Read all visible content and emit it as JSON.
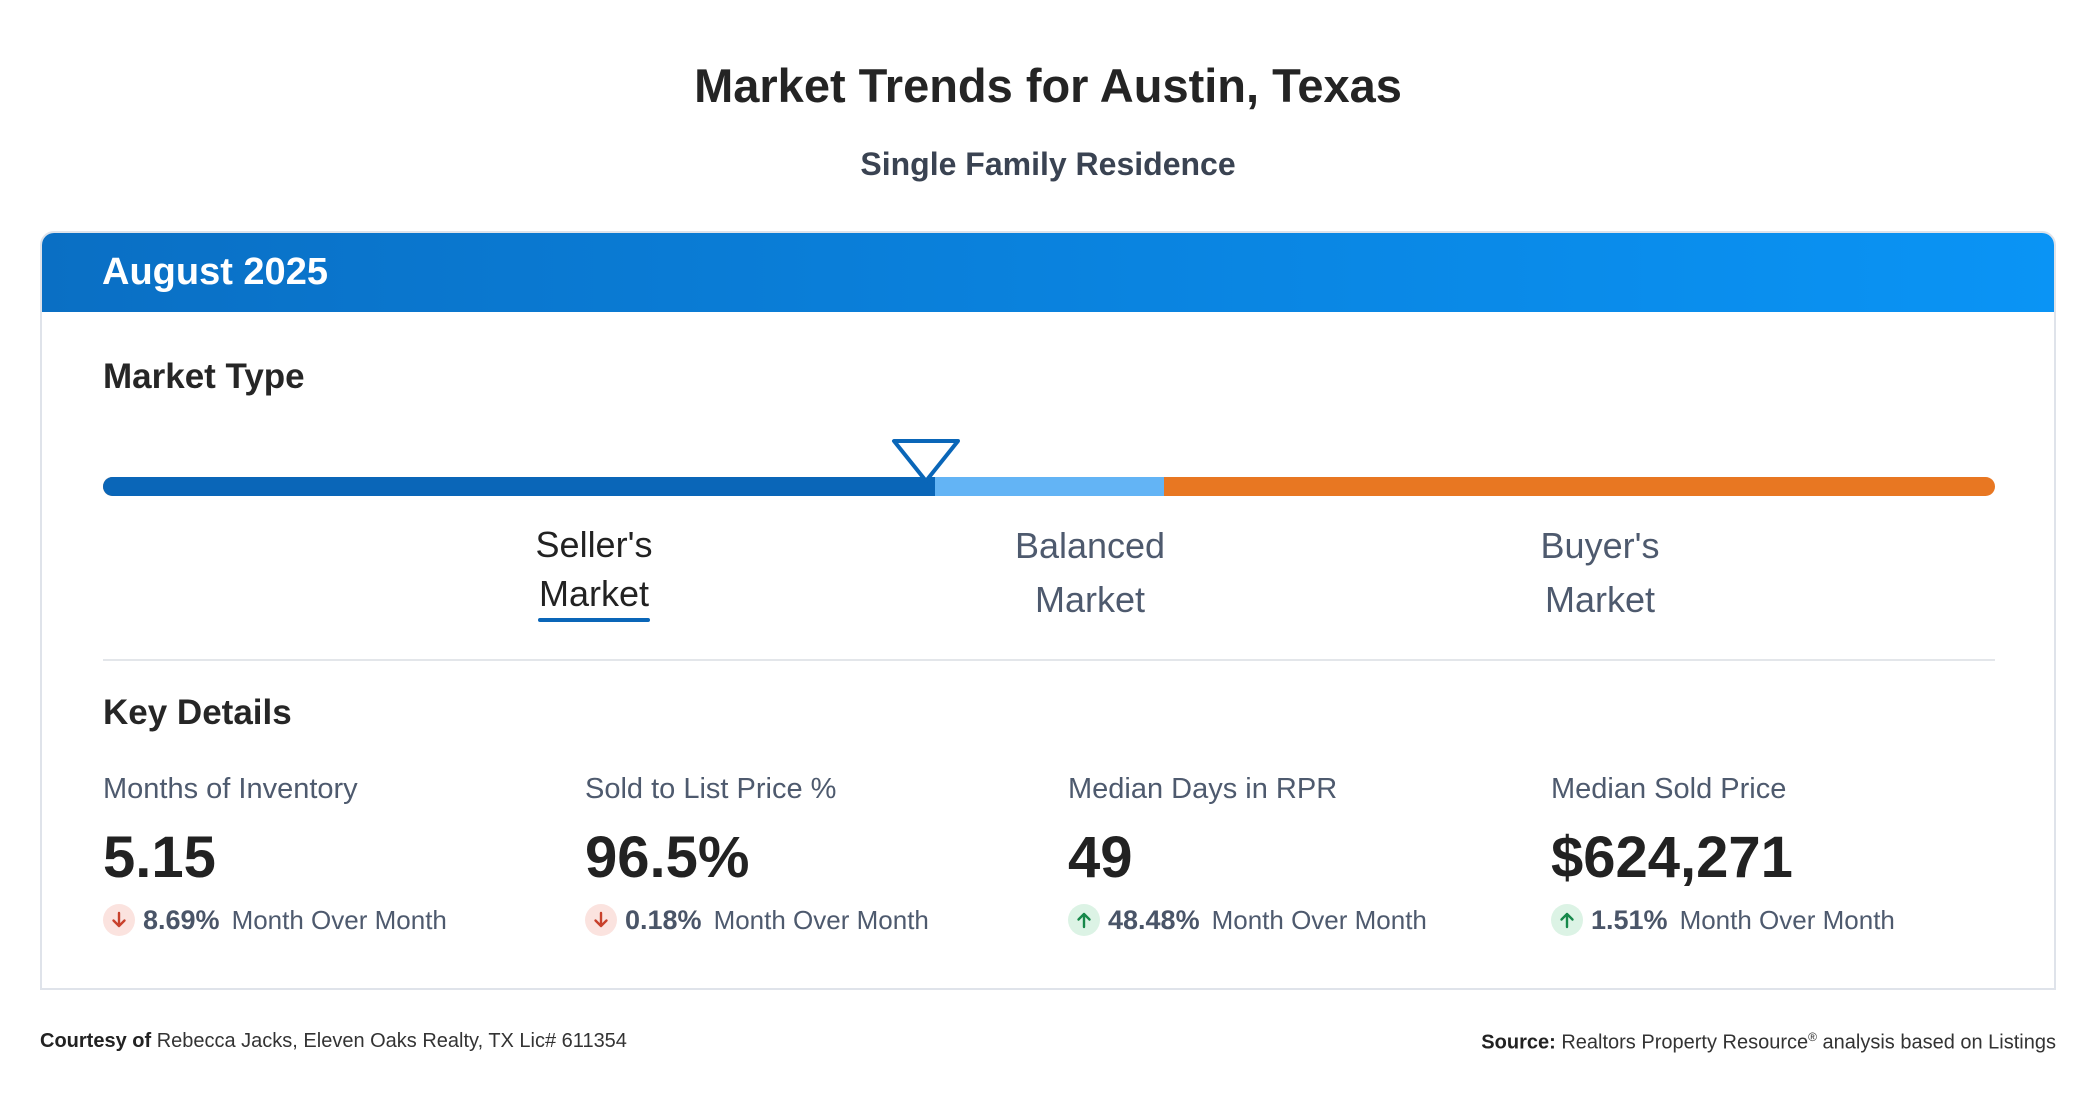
{
  "header": {
    "title": "Market Trends for Austin, Texas",
    "subtitle": "Single Family Residence"
  },
  "card": {
    "period": "August 2025",
    "market_type": {
      "heading": "Market Type",
      "indicator_position_pct": 43.5,
      "labels": [
        {
          "line1": "Seller's",
          "line2": "Market",
          "active": true
        },
        {
          "line1": "Balanced",
          "line2": "Market",
          "active": false
        },
        {
          "line1": "Buyer's",
          "line2": "Market",
          "active": false
        }
      ],
      "colors": {
        "seller": "#0a66b8",
        "balanced": "#63b4f5",
        "buyer": "#e87722"
      }
    },
    "key_details": {
      "heading": "Key Details",
      "metrics": [
        {
          "label": "Months of Inventory",
          "value": "5.15",
          "change": "8.69%",
          "direction": "down",
          "period": "Month Over Month"
        },
        {
          "label": "Sold to List Price %",
          "value": "96.5%",
          "change": "0.18%",
          "direction": "down",
          "period": "Month Over Month"
        },
        {
          "label": "Median Days in RPR",
          "value": "49",
          "change": "48.48%",
          "direction": "up",
          "period": "Month Over Month"
        },
        {
          "label": "Median Sold Price",
          "value": "$624,271",
          "change": "1.51%",
          "direction": "up",
          "period": "Month Over Month"
        }
      ]
    }
  },
  "footer": {
    "courtesy_label": "Courtesy of",
    "courtesy_text": "Rebecca Jacks, Eleven Oaks Realty, TX Lic# 611354",
    "source_label": "Source:",
    "source_name": "Realtors Property Resource",
    "source_mark": "®",
    "source_text": "analysis based on Listings"
  }
}
